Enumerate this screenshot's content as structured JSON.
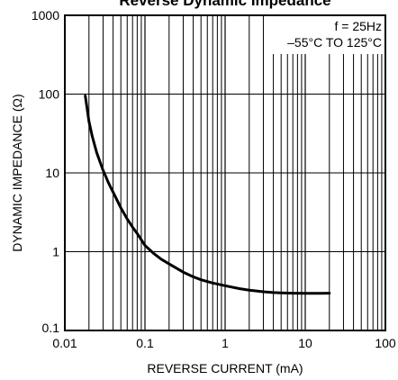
{
  "chart_data": {
    "type": "line",
    "title": "Reverse Dynamic Impedance",
    "xlabel": "REVERSE CURRENT (mA)",
    "ylabel": "DYNAMIC IMPEDANCE (Ω)",
    "x_scale": "log",
    "y_scale": "log",
    "xlim": [
      0.01,
      100
    ],
    "ylim": [
      0.1,
      1000
    ],
    "x_ticks": [
      0.01,
      0.1,
      1,
      10,
      100
    ],
    "x_tick_labels": [
      "0.01",
      "0.1",
      "1",
      "10",
      "100"
    ],
    "y_ticks": [
      0.1,
      1,
      10,
      100,
      1000
    ],
    "y_tick_labels": [
      "0.1",
      "1",
      "10",
      "100",
      "1000"
    ],
    "grid": true,
    "annotations": [
      "f = 25Hz",
      "–55°C TO 125°C"
    ],
    "series": [
      {
        "x": [
          0.018,
          0.02,
          0.022,
          0.025,
          0.03,
          0.035,
          0.04,
          0.05,
          0.06,
          0.07,
          0.08,
          0.1,
          0.13,
          0.16,
          0.2,
          0.3,
          0.4,
          0.5,
          0.7,
          1,
          1.5,
          2,
          3,
          4,
          5,
          7,
          10,
          15,
          20
        ],
        "y": [
          95,
          45,
          29,
          18,
          10.8,
          7.5,
          5.7,
          3.6,
          2.6,
          2.05,
          1.7,
          1.2,
          0.94,
          0.8,
          0.7,
          0.55,
          0.48,
          0.44,
          0.4,
          0.37,
          0.34,
          0.325,
          0.31,
          0.303,
          0.3,
          0.297,
          0.296,
          0.296,
          0.297
        ]
      }
    ]
  },
  "colors": {
    "axis": "#000000",
    "grid": "#000000",
    "curve": "#000000",
    "background": "#ffffff"
  }
}
